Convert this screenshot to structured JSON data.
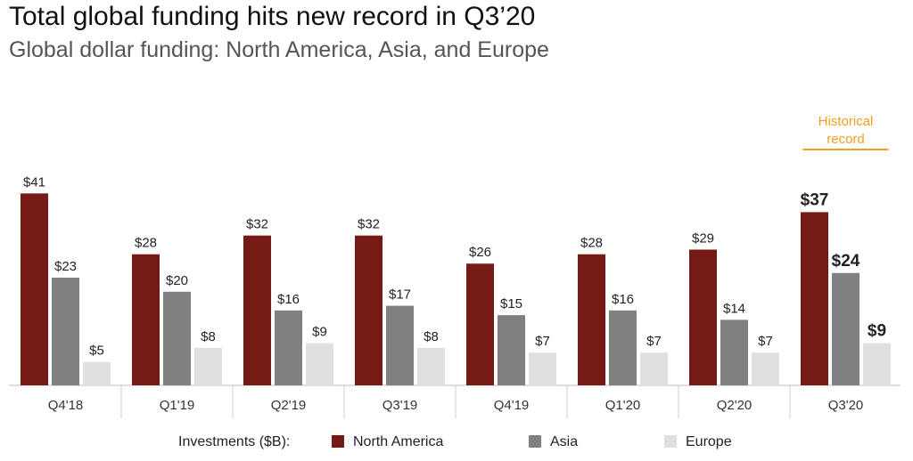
{
  "page": {
    "title": "Total global funding hits new record in Q3’20",
    "subtitle": "Global dollar funding: North America, Asia, and Europe"
  },
  "legend": {
    "title": "Investments ($B):",
    "items": [
      {
        "label": "North America",
        "color": "#751a14"
      },
      {
        "label": "Asia",
        "color": "#808080"
      },
      {
        "label": "Europe",
        "color": "#e0e0e0"
      }
    ]
  },
  "annotation": {
    "text_line1": "Historical",
    "text_line2": "record",
    "color": "#f0a020"
  },
  "chart_data": {
    "type": "bar",
    "title": "Total global funding hits new record in Q3’20",
    "subtitle": "Global dollar funding: North America, Asia, and Europe",
    "xlabel": "",
    "ylabel": "",
    "categories": [
      "Q4'18",
      "Q1'19",
      "Q2'19",
      "Q3'19",
      "Q4'19",
      "Q1'20",
      "Q2'20",
      "Q3'20"
    ],
    "series": [
      {
        "name": "North America",
        "color": "#751a14",
        "values": [
          41,
          28,
          32,
          32,
          26,
          28,
          29,
          37
        ],
        "labels": [
          "$41",
          "$28",
          "$32",
          "$32",
          "$26",
          "$28",
          "$29",
          "$37"
        ]
      },
      {
        "name": "Asia",
        "color": "#808080",
        "values": [
          23,
          20,
          16,
          17,
          15,
          16,
          14,
          24
        ],
        "labels": [
          "$23",
          "$20",
          "$16",
          "$17",
          "$15",
          "$16",
          "$14",
          "$24"
        ]
      },
      {
        "name": "Europe",
        "color": "#e0e0e0",
        "values": [
          5,
          8,
          9,
          8,
          7,
          7,
          7,
          9
        ],
        "labels": [
          "$5",
          "$8",
          "$9",
          "$8",
          "$7",
          "$7",
          "$7",
          "$9"
        ]
      }
    ],
    "highlight_category": "Q3'20",
    "ylim": [
      0,
      42
    ],
    "grid": false,
    "legend_position": "bottom"
  }
}
